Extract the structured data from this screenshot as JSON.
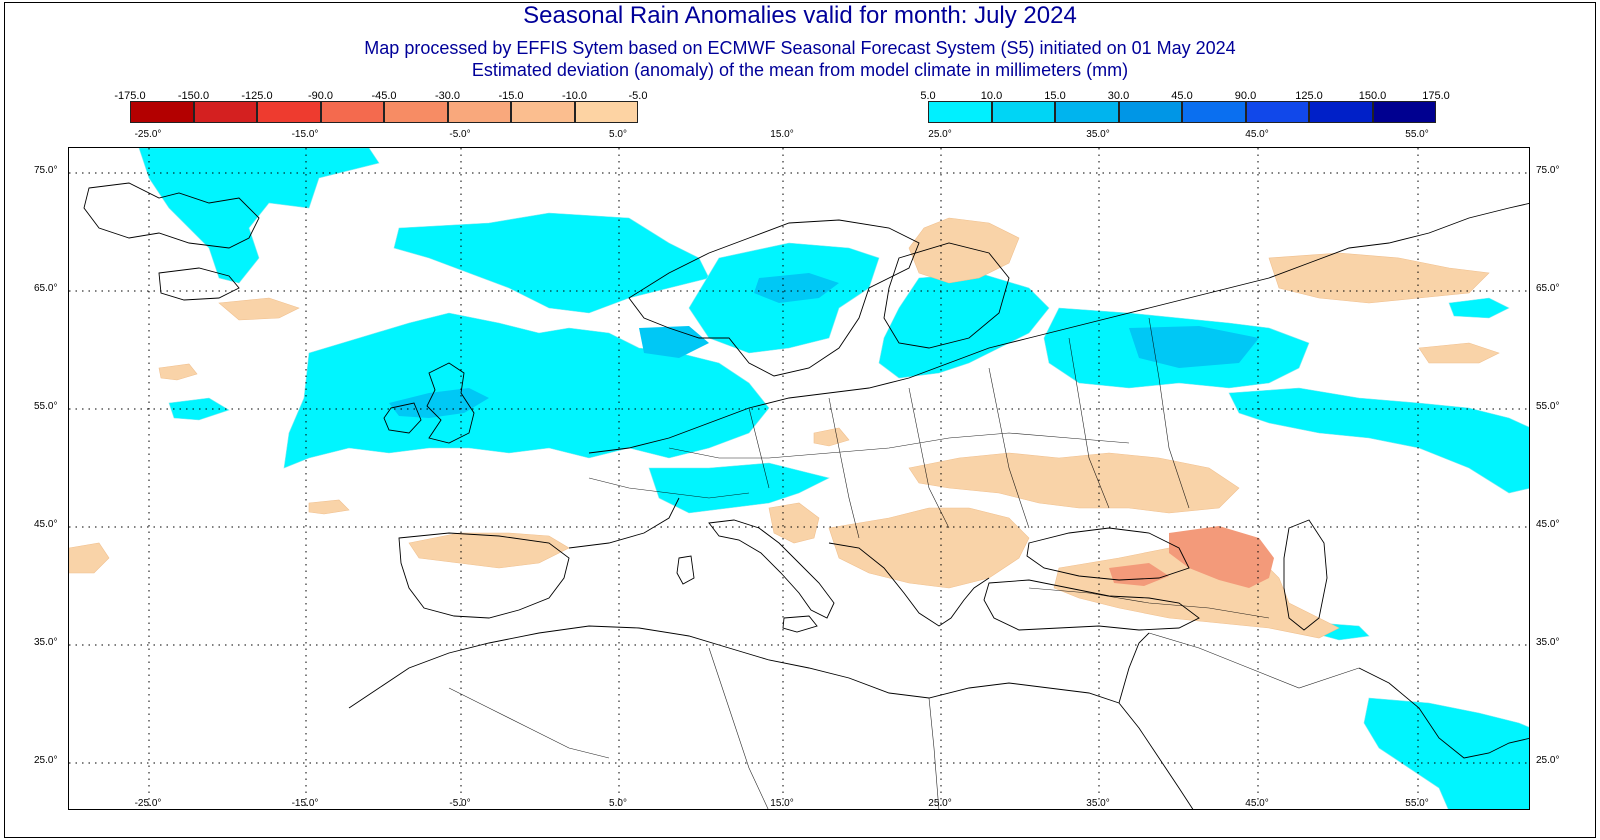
{
  "title": "Seasonal Rain Anomalies valid for month: July 2024",
  "subtitle_1": "Map processed by EFFIS Sytem based on ECMWF Seasonal Forecast System (S5) initiated on 01 May 2024",
  "subtitle_2": "Estimated deviation (anomaly) of the mean from model climate in millimeters (mm)",
  "legend_dry": {
    "labels": [
      "-175.0",
      "-150.0",
      "-125.0",
      "-90.0",
      "-45.0",
      "-30.0",
      "-15.0",
      "-10.0",
      "-5.0"
    ],
    "colors": [
      "#b30000",
      "#d42020",
      "#ee3b2f",
      "#f46a4e",
      "#f78c64",
      "#f9a87c",
      "#fbbe8f",
      "#fdd3a3"
    ]
  },
  "legend_wet": {
    "labels": [
      "5.0",
      "10.0",
      "15.0",
      "30.0",
      "45.0",
      "90.0",
      "125.0",
      "150.0",
      "175.0"
    ],
    "colors": [
      "#00f0ff",
      "#00d5f5",
      "#00b4ee",
      "#0096e6",
      "#0a6ff0",
      "#1148ea",
      "#0020c8",
      "#000090"
    ]
  },
  "longitude_labels": [
    "-25.0°",
    "-15.0°",
    "-5.0°",
    "5.0°",
    "15.0°",
    "25.0°",
    "35.0°",
    "45.0°",
    "55.0°"
  ],
  "latitude_labels": [
    "75.0°",
    "65.0°",
    "55.0°",
    "45.0°",
    "35.0°",
    "25.0°"
  ],
  "colors": {
    "title": "#000099",
    "wet_region": "#00f5ff",
    "wet_region_strong": "#00c8f5",
    "dry_region": "#f9d3a8",
    "dry_region_strong": "#f39a7a",
    "coastline": "#000000"
  }
}
